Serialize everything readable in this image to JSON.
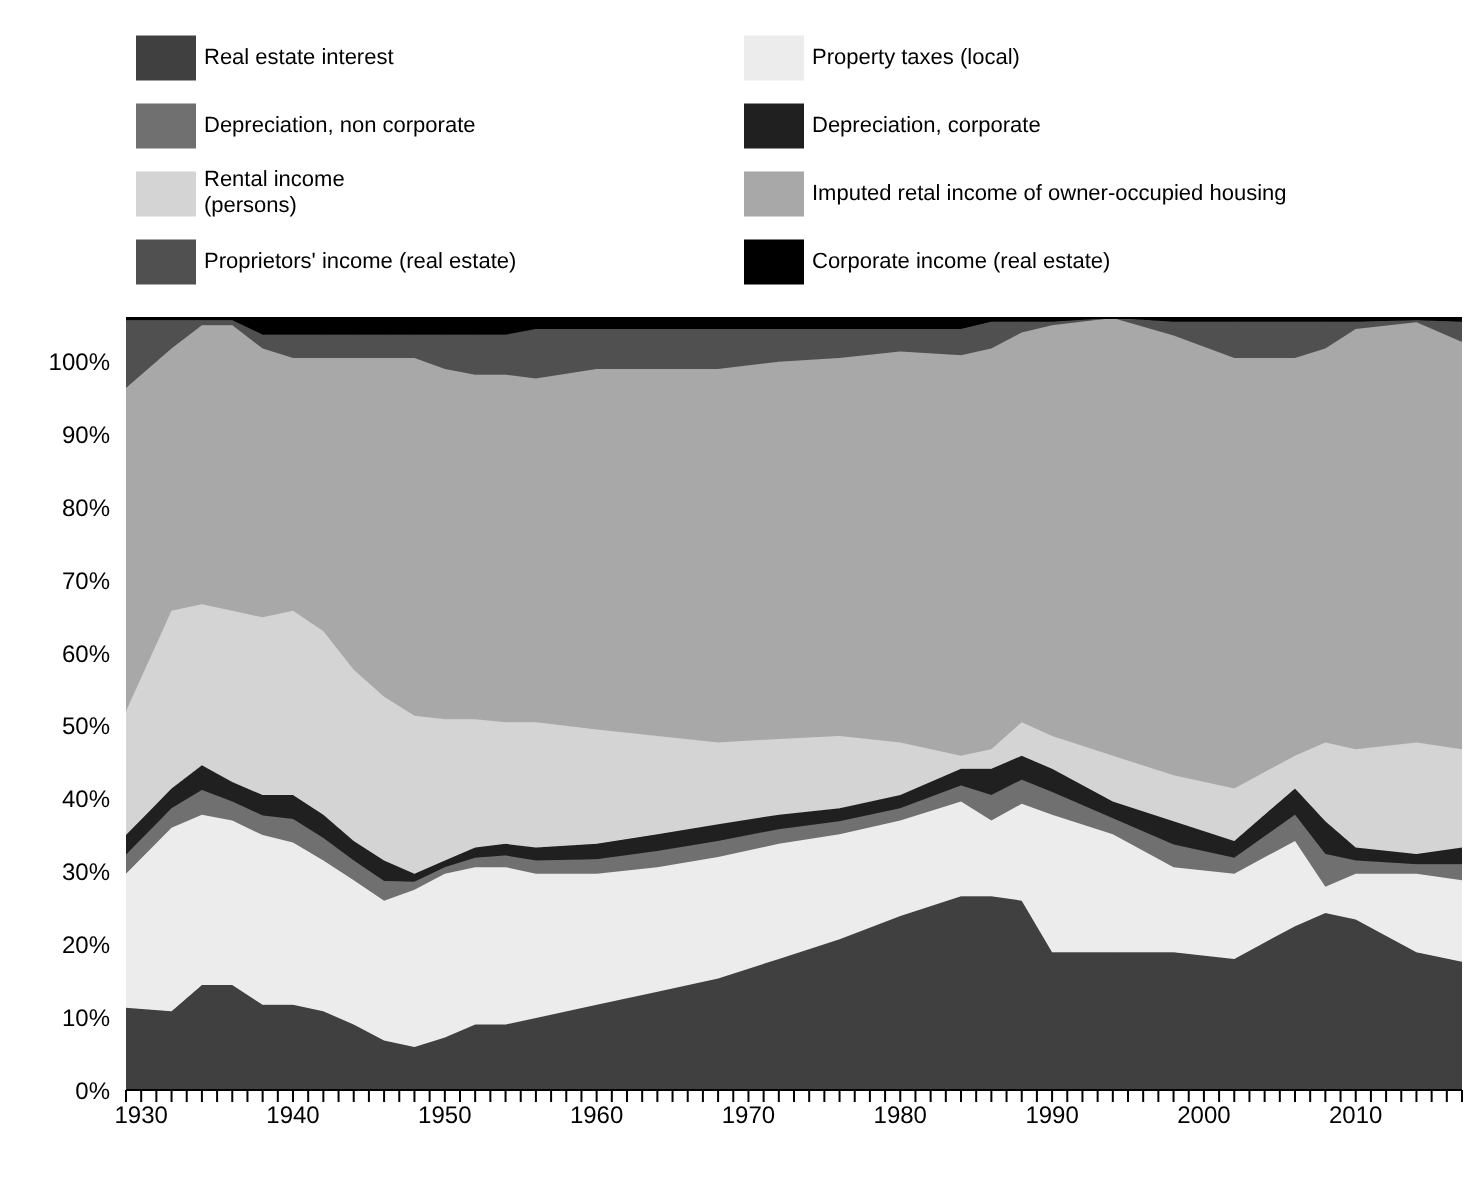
{
  "chart_data": {
    "type": "area",
    "stacked": true,
    "legend": "top",
    "grid": false,
    "x": [
      1929,
      1932,
      1934,
      1936,
      1938,
      1940,
      1942,
      1944,
      1946,
      1948,
      1950,
      1952,
      1954,
      1956,
      1960,
      1964,
      1968,
      1972,
      1976,
      1980,
      1984,
      1986,
      1988,
      1990,
      1994,
      1998,
      2002,
      2006,
      2008,
      2010,
      2014,
      2017
    ],
    "xlim": [
      1929,
      2017
    ],
    "xticks": [
      {
        "value": 1929,
        "label": null
      },
      1930,
      {
        "value": 1931,
        "label": null
      },
      {
        "value": 1932,
        "label": null
      },
      {
        "value": 1933,
        "label": null
      },
      {
        "value": 1934,
        "label": null
      },
      {
        "value": 1935,
        "label": null
      },
      {
        "value": 1936,
        "label": null
      },
      {
        "value": 1937,
        "label": null
      },
      {
        "value": 1938,
        "label": null
      },
      {
        "value": 1939,
        "label": null
      },
      1940,
      {
        "value": 1941,
        "label": null
      },
      {
        "value": 1942,
        "label": null
      },
      {
        "value": 1943,
        "label": null
      },
      {
        "value": 1944,
        "label": null
      },
      {
        "value": 1945,
        "label": null
      },
      {
        "value": 1946,
        "label": null
      },
      {
        "value": 1947,
        "label": null
      },
      {
        "value": 1948,
        "label": null
      },
      {
        "value": 1949,
        "label": null
      },
      1950,
      {
        "value": 1951,
        "label": null
      },
      {
        "value": 1952,
        "label": null
      },
      {
        "value": 1953,
        "label": null
      },
      {
        "value": 1954,
        "label": null
      },
      {
        "value": 1955,
        "label": null
      },
      {
        "value": 1956,
        "label": null
      },
      {
        "value": 1957,
        "label": null
      },
      {
        "value": 1958,
        "label": null
      },
      {
        "value": 1959,
        "label": null
      },
      1960,
      {
        "value": 1961,
        "label": null
      },
      {
        "value": 1962,
        "label": null
      },
      {
        "value": 1963,
        "label": null
      },
      {
        "value": 1964,
        "label": null
      },
      {
        "value": 1965,
        "label": null
      },
      {
        "value": 1966,
        "label": null
      },
      {
        "value": 1967,
        "label": null
      },
      {
        "value": 1968,
        "label": null
      },
      {
        "value": 1969,
        "label": null
      },
      1970,
      {
        "value": 1971,
        "label": null
      },
      {
        "value": 1972,
        "label": null
      },
      {
        "value": 1973,
        "label": null
      },
      {
        "value": 1974,
        "label": null
      },
      {
        "value": 1975,
        "label": null
      },
      {
        "value": 1976,
        "label": null
      },
      {
        "value": 1977,
        "label": null
      },
      {
        "value": 1978,
        "label": null
      },
      {
        "value": 1979,
        "label": null
      },
      1980,
      {
        "value": 1981,
        "label": null
      },
      {
        "value": 1982,
        "label": null
      },
      {
        "value": 1983,
        "label": null
      },
      {
        "value": 1984,
        "label": null
      },
      {
        "value": 1985,
        "label": null
      },
      {
        "value": 1986,
        "label": null
      },
      {
        "value": 1987,
        "label": null
      },
      {
        "value": 1988,
        "label": null
      },
      {
        "value": 1989,
        "label": null
      },
      1990,
      {
        "value": 1991,
        "label": null
      },
      {
        "value": 1992,
        "label": null
      },
      {
        "value": 1993,
        "label": null
      },
      {
        "value": 1994,
        "label": null
      },
      {
        "value": 1995,
        "label": null
      },
      {
        "value": 1996,
        "label": null
      },
      {
        "value": 1997,
        "label": null
      },
      {
        "value": 1998,
        "label": null
      },
      {
        "value": 1999,
        "label": null
      },
      2000,
      {
        "value": 2001,
        "label": null
      },
      {
        "value": 2002,
        "label": null
      },
      {
        "value": 2003,
        "label": null
      },
      {
        "value": 2004,
        "label": null
      },
      {
        "value": 2005,
        "label": null
      },
      {
        "value": 2006,
        "label": null
      },
      {
        "value": 2007,
        "label": null
      },
      {
        "value": 2008,
        "label": null
      },
      {
        "value": 2009,
        "label": null
      },
      2010,
      {
        "value": 2011,
        "label": null
      },
      {
        "value": 2012,
        "label": null
      },
      {
        "value": 2013,
        "label": null
      },
      {
        "value": 2014,
        "label": null
      },
      {
        "value": 2015,
        "label": null
      },
      {
        "value": 2016,
        "label": null
      },
      {
        "value": 2017,
        "label": null
      }
    ],
    "ylim": [
      0,
      106
    ],
    "yticks": [
      {
        "value": 0,
        "label": "0%"
      },
      {
        "value": 10,
        "label": "10%"
      },
      {
        "value": 20,
        "label": "20%"
      },
      {
        "value": 30,
        "label": "30%"
      },
      {
        "value": 40,
        "label": "40%"
      },
      {
        "value": 50,
        "label": "50%"
      },
      {
        "value": 60,
        "label": "60%"
      },
      {
        "value": 70,
        "label": "70%"
      },
      {
        "value": 80,
        "label": "80%"
      },
      {
        "value": 90,
        "label": "90%"
      },
      {
        "value": 100,
        "label": "100%"
      }
    ],
    "series": [
      {
        "name": "Real estate interest",
        "color": "#404040",
        "values": [
          11.3,
          10.8,
          14.4,
          14.4,
          11.7,
          11.7,
          10.8,
          9,
          6.8,
          5.9,
          7.2,
          9,
          9,
          9.9,
          11.7,
          13.5,
          15.3,
          18,
          20.7,
          23.9,
          26.6,
          26.6,
          26,
          18.9,
          18.9,
          18.9,
          18,
          22.5,
          24.3,
          23.4,
          18.9,
          17.6
        ]
      },
      {
        "name": "Property taxes (local)",
        "color": "#ececec",
        "values": [
          18.4,
          25.2,
          23.4,
          22.6,
          23.3,
          22.3,
          20.7,
          19.8,
          19.2,
          21.6,
          22.5,
          21.6,
          21.6,
          19.8,
          18,
          17.1,
          16.7,
          15.8,
          14.4,
          13.1,
          13,
          10.4,
          13.3,
          18.9,
          16.2,
          11.7,
          11.7,
          11.7,
          3.6,
          6.3,
          10.8,
          11.2
        ]
      },
      {
        "name": "Depreciation, non corporate",
        "color": "#707070",
        "values": [
          2.6,
          2.7,
          3.4,
          2.6,
          2.7,
          3.2,
          3.1,
          2.7,
          2.7,
          1.1,
          0.9,
          1.3,
          1.6,
          1.8,
          2,
          2.2,
          2.2,
          2,
          1.8,
          1.7,
          2.2,
          3.5,
          3.3,
          3.1,
          2.2,
          3.1,
          2.2,
          3.6,
          4.5,
          1.8,
          1.3,
          2.2
        ]
      },
      {
        "name": "Depreciation, corporate",
        "color": "#202020",
        "values": [
          2.7,
          2.7,
          3.4,
          2.7,
          2.8,
          3.3,
          3.2,
          2.7,
          2.8,
          1.1,
          0.9,
          1.4,
          1.6,
          1.8,
          2.1,
          2.3,
          2.3,
          2,
          1.8,
          1.8,
          2.3,
          3.6,
          3.3,
          3.2,
          2.3,
          3.2,
          2.3,
          3.6,
          4.5,
          1.8,
          1.4,
          2.3
        ]
      },
      {
        "name": "Rental income\n(persons)",
        "color": "#d4d4d4",
        "values": [
          17,
          24.4,
          22.1,
          23.5,
          24.4,
          25.3,
          25.2,
          23.5,
          22.5,
          21.7,
          19.4,
          17.6,
          16.7,
          17.2,
          15.7,
          13.5,
          11.2,
          10.4,
          9.9,
          7.2,
          1.8,
          2.7,
          4.6,
          4.5,
          6.3,
          6.3,
          7.2,
          4.5,
          10.8,
          13.5,
          15.3,
          13.5
        ]
      },
      {
        "name": "Imputed retal income of owner-occupied housing",
        "color": "#a8a8a8",
        "values": [
          44.4,
          36,
          38.3,
          39.2,
          36.9,
          34.7,
          37.5,
          42.8,
          46.5,
          49.1,
          48.1,
          47.3,
          47.7,
          47.2,
          49.5,
          50.4,
          51.3,
          51.8,
          51.9,
          53.7,
          55,
          55,
          53.5,
          56.4,
          60.1,
          60.4,
          59.1,
          54.6,
          54.1,
          57.7,
          57.7,
          55.9
        ]
      },
      {
        "name": "Proprietors' income (real estate)",
        "color": "#505050",
        "values": [
          9.3,
          3.9,
          0.7,
          0.7,
          1.9,
          3.2,
          3.2,
          3.2,
          3.2,
          3.2,
          4.7,
          5.5,
          5.5,
          6.8,
          5.5,
          5.5,
          5.5,
          4.5,
          4,
          3.1,
          3.6,
          3.7,
          1.5,
          0.5,
          0,
          1.9,
          5,
          5,
          3.7,
          1,
          0.3,
          2.8
        ]
      },
      {
        "name": "Corporate income (real estate)",
        "color": "#000000",
        "values": [
          0.3,
          0.3,
          0.3,
          0.3,
          2.3,
          2.3,
          2.3,
          2.3,
          2.3,
          2.3,
          2.3,
          2.3,
          2.3,
          1.5,
          1.5,
          1.5,
          1.5,
          1.5,
          1.5,
          1.5,
          1.5,
          0.5,
          0.5,
          0.5,
          0,
          0.5,
          0.5,
          0.5,
          0.5,
          0.5,
          0.3,
          0.5
        ]
      }
    ]
  }
}
